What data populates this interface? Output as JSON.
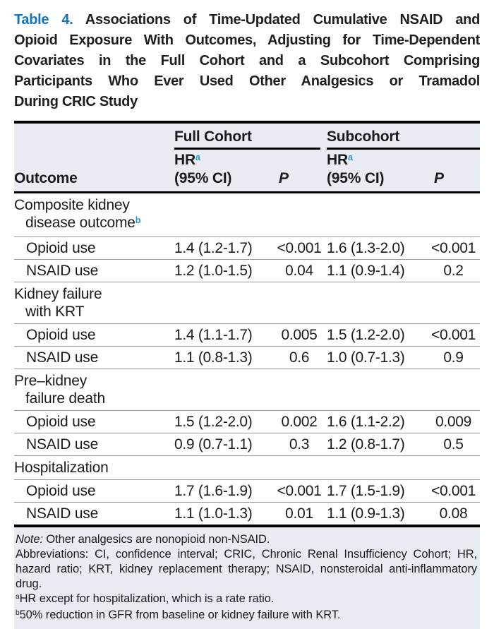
{
  "title": {
    "label": "Table 4.",
    "lines": [
      "Associations of Time-Updated Cumulative NSAID and",
      "Opioid Exposure With Outcomes, Adjusting for Time-Dependent",
      "Covariates in the Full Cohort and a Subcohort Comprising",
      "Participants Who Ever Used Other Analgesics or Tramadol",
      "During CRIC Study"
    ]
  },
  "table": {
    "col_groups": [
      {
        "label": "Full Cohort"
      },
      {
        "label": "Subcohort"
      }
    ],
    "headers": {
      "outcome": "Outcome",
      "hr_line1": "HR",
      "hr_sup": "a",
      "hr_line2": "(95% CI)",
      "p": "P"
    },
    "sections": [
      {
        "name_line1": "Composite kidney",
        "name_line2": "disease outcome",
        "name_sup": "b",
        "rows": [
          {
            "label": "Opioid use",
            "full_hr": "1.4 (1.2-1.7)",
            "full_p": "<0.001",
            "sub_hr": "1.6 (1.3-2.0)",
            "sub_p": "<0.001"
          },
          {
            "label": "NSAID use",
            "full_hr": "1.2 (1.0-1.5)",
            "full_p": "0.04",
            "sub_hr": "1.1 (0.9-1.4)",
            "sub_p": "0.2"
          }
        ]
      },
      {
        "name_line1": "Kidney failure",
        "name_line2": "with KRT",
        "rows": [
          {
            "label": "Opioid use",
            "full_hr": "1.4 (1.1-1.7)",
            "full_p": "0.005",
            "sub_hr": "1.5 (1.2-2.0)",
            "sub_p": "<0.001"
          },
          {
            "label": "NSAID use",
            "full_hr": "1.1 (0.8-1.3)",
            "full_p": "0.6",
            "sub_hr": "1.0 (0.7-1.3)",
            "sub_p": "0.9"
          }
        ]
      },
      {
        "name_line1": "Pre–kidney",
        "name_line2": "failure death",
        "rows": [
          {
            "label": "Opioid use",
            "full_hr": "1.5 (1.2-2.0)",
            "full_p": "0.002",
            "sub_hr": "1.6 (1.1-2.2)",
            "sub_p": "0.009"
          },
          {
            "label": "NSAID use",
            "full_hr": "0.9 (0.7-1.1)",
            "full_p": "0.3",
            "sub_hr": "1.2 (0.8-1.7)",
            "sub_p": "0.5"
          }
        ]
      },
      {
        "name_line1": "Hospitalization",
        "rows": [
          {
            "label": "Opioid use",
            "full_hr": "1.7 (1.6-1.9)",
            "full_p": "<0.001",
            "sub_hr": "1.7 (1.5-1.9)",
            "sub_p": "<0.001"
          },
          {
            "label": "NSAID use",
            "full_hr": "1.1 (1.0-1.3)",
            "full_p": "0.01",
            "sub_hr": "1.1 (0.9-1.3)",
            "sub_p": "0.08"
          }
        ]
      }
    ]
  },
  "footer": {
    "note_label": "Note:",
    "note_text": "Other analgesics are nonopioid non-NSAID.",
    "abbreviations": "Abbreviations: CI, confidence interval; CRIC, Chronic Renal Insufficiency Cohort; HR, hazard ratio; KRT, kidney replacement therapy; NSAID, nonsteroidal anti-inflammatory drug.",
    "footnote_a_sup": "a",
    "footnote_a_text": "HR except for hospitalization, which is a rate ratio.",
    "footnote_b_sup": "b",
    "footnote_b_text": "50% reduction in GFR from baseline or kidney failure with KRT."
  },
  "colors": {
    "title_blue": "#1274BB",
    "sup_blue": "#2496CF",
    "header_bg": "#E9EDF3",
    "footer_bg": "#E8EBF1",
    "rule_thin": "#999999"
  }
}
